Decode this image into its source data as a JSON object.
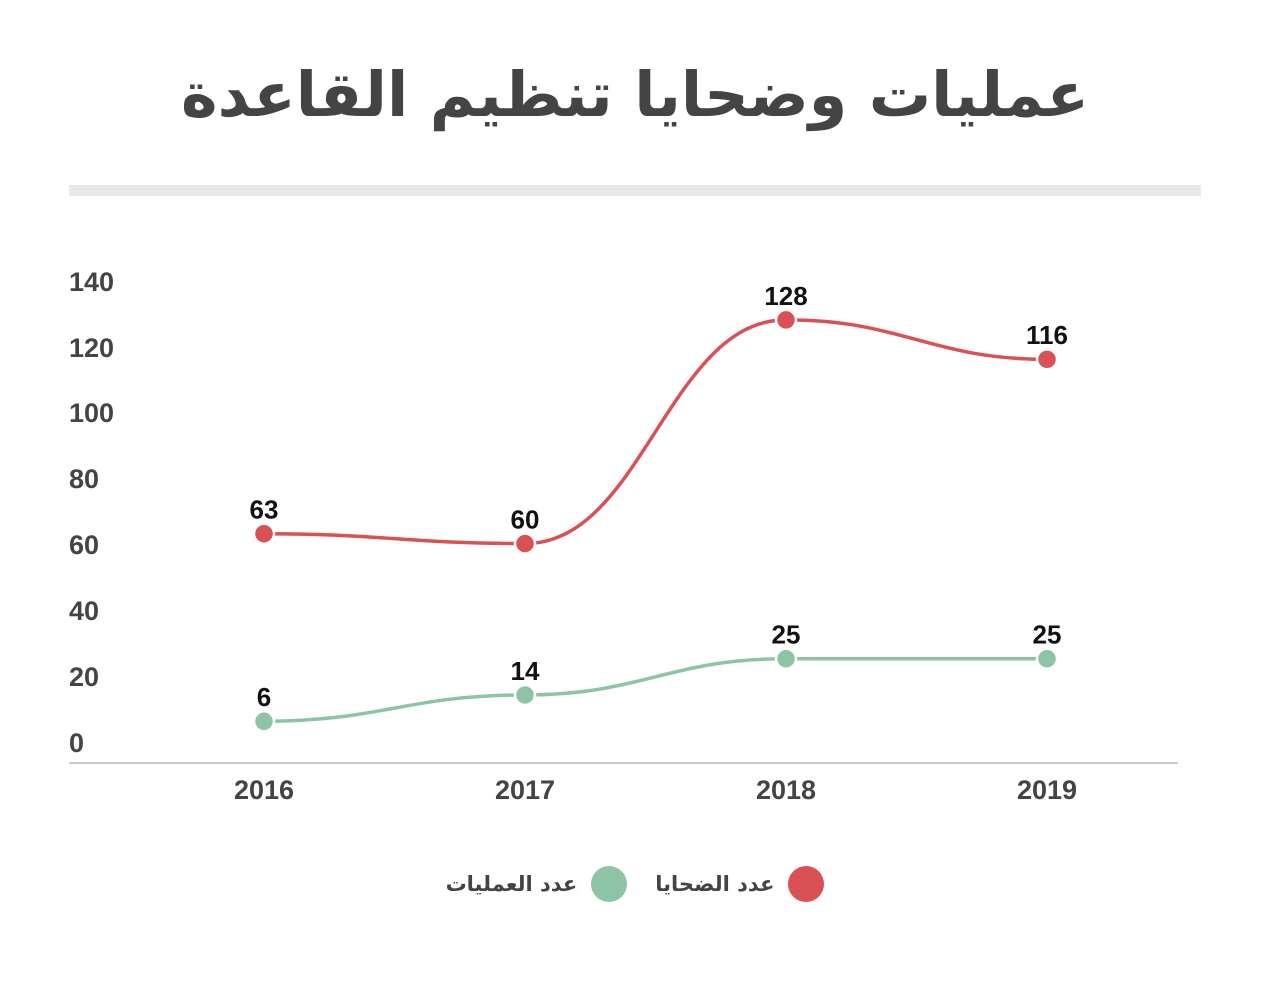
{
  "chart_data": {
    "type": "line",
    "title": "عمليات وضحايا تنظيم القاعدة",
    "categories": [
      "2016",
      "2017",
      "2018",
      "2019"
    ],
    "y_ticks": [
      "0",
      "20",
      "40",
      "60",
      "80",
      "100",
      "120",
      "140"
    ],
    "ylim": [
      0,
      140
    ],
    "grid": false,
    "legend_position": "bottom",
    "series": [
      {
        "name": "عدد الضحايا",
        "values": [
          63,
          60,
          128,
          116
        ],
        "labels": [
          "63",
          "60",
          "128",
          "116"
        ],
        "color": "#d95055"
      },
      {
        "name": "عدد العمليات",
        "values": [
          6,
          14,
          25,
          25
        ],
        "labels": [
          "6",
          "14",
          "25",
          "25"
        ],
        "color": "#8ec4a6"
      }
    ]
  }
}
